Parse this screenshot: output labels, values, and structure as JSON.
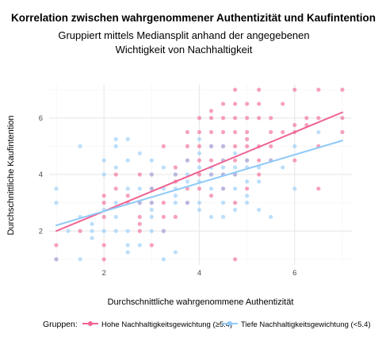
{
  "chart_data": {
    "type": "scatter",
    "title": "Korrelation zwischen wahrgenommener Authentizität und Kaufintention",
    "subtitle_lines": [
      "Gruppiert mittels Mediansplit anhand der angegebenen",
      "Wichtigkeit von Nachhaltigkeit"
    ],
    "xlabel": "Durchschnittliche wahrgenommene Authentizität",
    "ylabel": "Durchschnittliche Kaufintention",
    "xlim": [
      0.85,
      7.2
    ],
    "ylim": [
      0.8,
      7.2
    ],
    "xticks": [
      2,
      4,
      6
    ],
    "yticks": [
      2,
      4,
      6
    ],
    "grid": true,
    "legend_position": "bottom",
    "legend_title": "Gruppen:",
    "series": [
      {
        "name": "Hohe Nachhaltigkeitsgewichtung (≥5.4)",
        "color": "#f06292",
        "trend": [
          [
            1.0,
            2.0
          ],
          [
            7.0,
            6.2
          ]
        ],
        "points": [
          [
            1.0,
            1.0
          ],
          [
            1.0,
            1.5
          ],
          [
            1.5,
            2.0
          ],
          [
            2.0,
            1.0
          ],
          [
            2.0,
            1.5
          ],
          [
            2.0,
            2.5
          ],
          [
            2.0,
            3.0
          ],
          [
            2.0,
            3.25
          ],
          [
            2.25,
            3.5
          ],
          [
            2.25,
            4.0
          ],
          [
            2.5,
            3.0
          ],
          [
            2.5,
            3.25
          ],
          [
            2.75,
            2.0
          ],
          [
            2.75,
            2.25
          ],
          [
            2.75,
            2.5
          ],
          [
            2.75,
            3.0
          ],
          [
            2.75,
            4.0
          ],
          [
            3.0,
            1.5
          ],
          [
            3.0,
            3.0
          ],
          [
            3.0,
            3.5
          ],
          [
            3.0,
            4.0
          ],
          [
            3.25,
            2.0
          ],
          [
            3.25,
            2.5
          ],
          [
            3.25,
            3.0
          ],
          [
            3.5,
            2.5
          ],
          [
            3.5,
            3.75
          ],
          [
            3.5,
            4.0
          ],
          [
            3.5,
            4.25
          ],
          [
            3.75,
            3.0
          ],
          [
            3.75,
            3.5
          ],
          [
            3.75,
            4.5
          ],
          [
            3.75,
            5.0
          ],
          [
            3.75,
            5.5
          ],
          [
            4.0,
            3.5
          ],
          [
            4.0,
            4.0
          ],
          [
            4.0,
            4.5
          ],
          [
            4.0,
            5.0
          ],
          [
            4.0,
            5.5
          ],
          [
            4.0,
            6.0
          ],
          [
            4.25,
            3.25
          ],
          [
            4.25,
            4.0
          ],
          [
            4.25,
            4.5
          ],
          [
            4.25,
            5.0
          ],
          [
            4.25,
            5.5
          ],
          [
            4.25,
            6.0
          ],
          [
            4.25,
            6.25
          ],
          [
            4.5,
            3.5
          ],
          [
            4.5,
            4.0
          ],
          [
            4.5,
            4.5
          ],
          [
            4.5,
            5.0
          ],
          [
            4.5,
            5.5
          ],
          [
            4.5,
            6.0
          ],
          [
            4.75,
            1.0
          ],
          [
            4.75,
            3.0
          ],
          [
            4.75,
            4.0
          ],
          [
            4.75,
            4.5
          ],
          [
            4.75,
            5.0
          ],
          [
            4.75,
            5.5
          ],
          [
            4.75,
            6.0
          ],
          [
            4.75,
            6.5
          ],
          [
            4.75,
            7.0
          ],
          [
            5.0,
            3.5
          ],
          [
            5.0,
            4.5
          ],
          [
            5.0,
            5.0
          ],
          [
            5.0,
            5.25
          ],
          [
            5.0,
            5.5
          ],
          [
            5.0,
            6.0
          ],
          [
            5.0,
            6.5
          ],
          [
            5.25,
            4.0
          ],
          [
            5.25,
            4.5
          ],
          [
            5.25,
            5.0
          ],
          [
            5.25,
            6.0
          ],
          [
            5.25,
            6.5
          ],
          [
            5.25,
            7.0
          ],
          [
            5.5,
            5.0
          ],
          [
            5.5,
            5.5
          ],
          [
            5.5,
            6.0
          ],
          [
            5.75,
            5.5
          ],
          [
            5.75,
            6.5
          ],
          [
            6.0,
            4.5
          ],
          [
            6.0,
            5.5
          ],
          [
            6.0,
            7.0
          ],
          [
            6.25,
            5.75
          ],
          [
            6.25,
            6.0
          ],
          [
            6.5,
            5.0
          ],
          [
            6.5,
            6.0
          ],
          [
            6.5,
            7.0
          ],
          [
            6.5,
            3.5
          ],
          [
            7.0,
            5.5
          ],
          [
            7.0,
            6.0
          ],
          [
            7.0,
            7.0
          ],
          [
            6.0,
            5.75
          ],
          [
            5.5,
            4.5
          ],
          [
            4.5,
            6.5
          ],
          [
            3.25,
            5.0
          ]
        ]
      },
      {
        "name": "Tiefe Nachhaltigkeitsgewichtung (<5.4)",
        "color": "#90caf9",
        "trend": [
          [
            1.0,
            2.2
          ],
          [
            7.0,
            5.2
          ]
        ],
        "points": [
          [
            1.0,
            1.0
          ],
          [
            1.0,
            3.0
          ],
          [
            1.0,
            3.5
          ],
          [
            1.25,
            2.0
          ],
          [
            1.5,
            1.0
          ],
          [
            1.5,
            5.0
          ],
          [
            1.5,
            2.5
          ],
          [
            1.75,
            1.75
          ],
          [
            1.75,
            2.0
          ],
          [
            1.75,
            2.25
          ],
          [
            2.0,
            2.0
          ],
          [
            2.0,
            2.75
          ],
          [
            2.0,
            4.0
          ],
          [
            2.0,
            4.5
          ],
          [
            2.25,
            2.0
          ],
          [
            2.25,
            2.5
          ],
          [
            2.25,
            3.0
          ],
          [
            2.25,
            5.0
          ],
          [
            2.25,
            5.25
          ],
          [
            2.5,
            1.25
          ],
          [
            2.5,
            1.5
          ],
          [
            2.5,
            2.0
          ],
          [
            2.5,
            3.5
          ],
          [
            2.5,
            4.5
          ],
          [
            2.5,
            5.25
          ],
          [
            2.75,
            1.5
          ],
          [
            2.75,
            3.0
          ],
          [
            2.75,
            3.5
          ],
          [
            2.75,
            4.75
          ],
          [
            3.0,
            2.0
          ],
          [
            3.0,
            2.5
          ],
          [
            3.0,
            3.0
          ],
          [
            3.0,
            3.5
          ],
          [
            3.0,
            4.0
          ],
          [
            3.0,
            4.5
          ],
          [
            3.25,
            1.0
          ],
          [
            3.25,
            2.0
          ],
          [
            3.25,
            3.5
          ],
          [
            3.25,
            4.25
          ],
          [
            3.5,
            1.25
          ],
          [
            3.5,
            3.0
          ],
          [
            3.5,
            3.25
          ],
          [
            3.5,
            3.5
          ],
          [
            3.5,
            4.0
          ],
          [
            3.75,
            3.0
          ],
          [
            3.75,
            3.75
          ],
          [
            3.75,
            4.0
          ],
          [
            3.75,
            4.5
          ],
          [
            4.0,
            3.0
          ],
          [
            4.0,
            3.75
          ],
          [
            4.0,
            4.25
          ],
          [
            4.0,
            4.75
          ],
          [
            4.0,
            5.25
          ],
          [
            4.25,
            3.5
          ],
          [
            4.25,
            4.0
          ],
          [
            4.25,
            4.25
          ],
          [
            4.25,
            5.0
          ],
          [
            4.25,
            2.5
          ],
          [
            4.5,
            3.0
          ],
          [
            4.5,
            3.5
          ],
          [
            4.5,
            4.0
          ],
          [
            4.5,
            4.25
          ],
          [
            4.5,
            4.5
          ],
          [
            4.5,
            5.0
          ],
          [
            4.75,
            2.75
          ],
          [
            4.75,
            3.5
          ],
          [
            4.75,
            4.0
          ],
          [
            4.75,
            4.25
          ],
          [
            4.75,
            4.75
          ],
          [
            5.0,
            3.0
          ],
          [
            5.0,
            3.25
          ],
          [
            5.0,
            3.75
          ],
          [
            5.0,
            4.25
          ],
          [
            5.0,
            4.5
          ],
          [
            5.25,
            2.75
          ],
          [
            5.25,
            3.75
          ],
          [
            5.25,
            4.25
          ],
          [
            5.5,
            2.5
          ],
          [
            5.5,
            4.5
          ],
          [
            5.75,
            4.25
          ],
          [
            6.0,
            3.5
          ],
          [
            6.0,
            5.0
          ],
          [
            6.5,
            5.5
          ],
          [
            4.0,
            2.75
          ],
          [
            3.0,
            2.75
          ],
          [
            2.25,
            4.25
          ],
          [
            4.5,
            2.5
          ]
        ]
      }
    ]
  }
}
